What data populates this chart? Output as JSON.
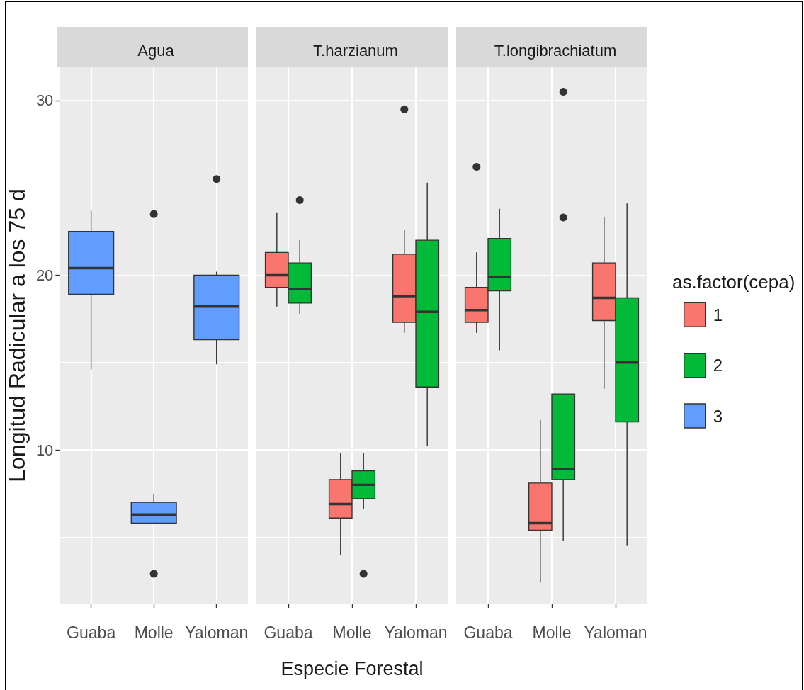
{
  "chart_data": [
    {
      "type": "box",
      "title": "Agua",
      "ylabel": "Longitud Radicular a los 75 d",
      "categories": [
        "Guaba",
        "Molle",
        "Yaloman"
      ],
      "ylim": [
        1.2,
        31.9
      ],
      "yticks": [
        {
          "value": 5,
          "label": null
        },
        10,
        {
          "value": 15,
          "label": null
        },
        20,
        {
          "value": 25,
          "label": null
        },
        30
      ],
      "grid": true,
      "series": [
        {
          "color": "#619cff",
          "boxes": [
            {
              "low": 14.6,
              "q1": 18.9,
              "median": 20.4,
              "q3": 22.5,
              "high": 23.7
            },
            {
              "low": 5.8,
              "q1": 5.8,
              "median": 6.3,
              "q3": 7.0,
              "high": 7.5,
              "outliers": [
                23.5,
                2.9
              ]
            },
            {
              "low": 14.9,
              "q1": 16.3,
              "median": 18.2,
              "q3": 20.0,
              "high": 20.2,
              "outliers": [
                25.5
              ]
            }
          ]
        }
      ]
    },
    {
      "type": "box",
      "title": "T.harzianum",
      "xlabel": "Especie Forestal",
      "categories": [
        "Guaba",
        "Molle",
        "Yaloman"
      ],
      "ylim": [
        1.2,
        31.9
      ],
      "yticks": [
        {
          "value": 5,
          "label": null
        },
        10,
        {
          "value": 15,
          "label": null
        },
        20,
        {
          "value": 25,
          "label": null
        },
        30
      ],
      "grid": true,
      "tick_labels": "x",
      "series": [
        {
          "color": "#f8766d",
          "boxes": [
            {
              "low": 18.2,
              "q1": 19.3,
              "median": 20.0,
              "q3": 21.3,
              "high": 23.6
            },
            {
              "low": 4.0,
              "q1": 6.1,
              "median": 6.9,
              "q3": 8.3,
              "high": 9.8
            },
            {
              "low": 16.7,
              "q1": 17.3,
              "median": 18.8,
              "q3": 21.2,
              "high": 22.6,
              "outliers": [
                29.5
              ]
            }
          ]
        },
        {
          "color": "#00ba38",
          "boxes": [
            {
              "low": 17.8,
              "q1": 18.4,
              "median": 19.2,
              "q3": 20.7,
              "high": 22.0,
              "outliers": [
                24.3
              ]
            },
            {
              "low": 6.6,
              "q1": 7.2,
              "median": 8.0,
              "q3": 8.8,
              "high": 9.8,
              "outliers": [
                2.9
              ]
            },
            {
              "low": 10.2,
              "q1": 13.6,
              "median": 17.9,
              "q3": 22.0,
              "high": 25.3
            }
          ]
        }
      ]
    },
    {
      "type": "box",
      "title": "T.longibrachiatum",
      "categories": [
        "Guaba",
        "Molle",
        "Yaloman"
      ],
      "ylim": [
        1.2,
        31.9
      ],
      "yticks": [
        {
          "value": 5,
          "label": null
        },
        10,
        {
          "value": 15,
          "label": null
        },
        20,
        {
          "value": 25,
          "label": null
        },
        30
      ],
      "grid": true,
      "tick_labels": "x",
      "legend": "right",
      "legend_title": "as.factor(cepa)",
      "series": [
        {
          "name": "1",
          "color": "#f8766d",
          "boxes": [
            {
              "low": 16.7,
              "q1": 17.3,
              "median": 18.0,
              "q3": 19.3,
              "high": 21.3,
              "outliers": [
                26.2
              ]
            },
            {
              "low": 2.4,
              "q1": 5.4,
              "median": 5.8,
              "q3": 8.1,
              "high": 11.7
            },
            {
              "low": 13.5,
              "q1": 17.4,
              "median": 18.7,
              "q3": 20.7,
              "high": 23.3
            }
          ]
        },
        {
          "name": "2",
          "color": "#00ba38",
          "boxes": [
            {
              "low": 15.7,
              "q1": 19.1,
              "median": 19.9,
              "q3": 22.1,
              "high": 23.8
            },
            {
              "low": 4.8,
              "q1": 8.3,
              "median": 8.9,
              "q3": 13.2,
              "high": 13.2,
              "outliers": [
                30.5,
                23.3
              ]
            },
            {
              "low": 4.5,
              "q1": 11.6,
              "median": 15.0,
              "q3": 18.7,
              "high": 24.1
            }
          ]
        },
        {
          "name": "3",
          "color": "#619cff",
          "boxes": [
            null,
            null,
            null
          ]
        }
      ]
    }
  ]
}
